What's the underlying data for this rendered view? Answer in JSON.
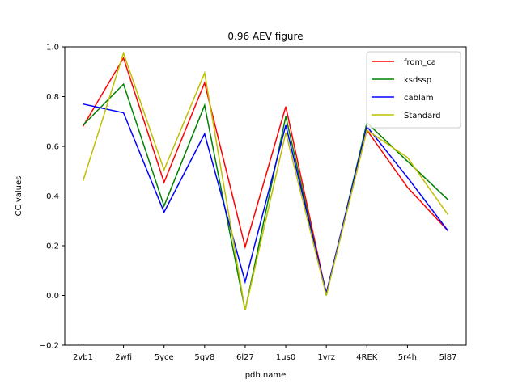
{
  "chart_data": {
    "type": "line",
    "title": "0.96 AEV figure",
    "xlabel": "pdb name",
    "ylabel": "CC values",
    "categories": [
      "2vb1",
      "2wfi",
      "5yce",
      "5gv8",
      "6l27",
      "1us0",
      "1vrz",
      "4REK",
      "5r4h",
      "5l87"
    ],
    "ylim": [
      -0.2,
      1.0
    ],
    "yticks": [
      "−0.2",
      "0.0",
      "0.2",
      "0.4",
      "0.6",
      "0.8",
      "1.0"
    ],
    "ytick_values": [
      -0.2,
      0.0,
      0.2,
      0.4,
      0.6,
      0.8,
      1.0
    ],
    "grid": false,
    "legend_position": "top-right",
    "series": [
      {
        "name": "from_ca",
        "color": "#ff0000",
        "values": [
          0.68,
          0.955,
          0.455,
          0.855,
          0.195,
          0.76,
          0.005,
          0.665,
          0.435,
          0.26
        ]
      },
      {
        "name": "ksdssp",
        "color": "#008000",
        "values": [
          0.685,
          0.85,
          0.36,
          0.765,
          -0.06,
          0.72,
          0.0,
          0.695,
          0.54,
          0.385
        ]
      },
      {
        "name": "cablam",
        "color": "#0000ff",
        "values": [
          0.77,
          0.735,
          0.335,
          0.65,
          0.055,
          0.685,
          0.01,
          0.68,
          0.475,
          0.26
        ]
      },
      {
        "name": "Standard",
        "color": "#bfbf00",
        "values": [
          0.46,
          0.975,
          0.505,
          0.895,
          -0.06,
          0.655,
          0.0,
          0.665,
          0.555,
          0.325
        ]
      }
    ]
  }
}
